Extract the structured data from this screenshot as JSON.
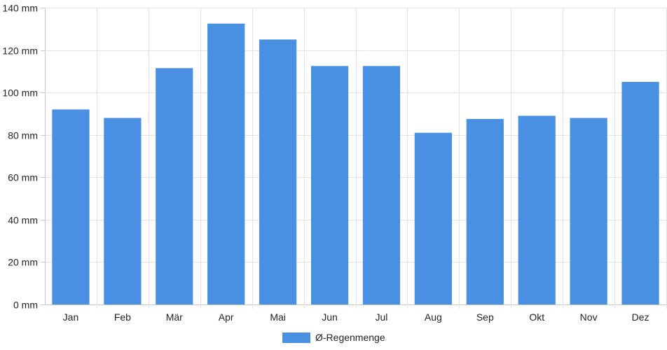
{
  "chart_data": {
    "type": "bar",
    "categories": [
      "Jan",
      "Feb",
      "Mär",
      "Apr",
      "Mai",
      "Jun",
      "Jul",
      "Aug",
      "Sep",
      "Okt",
      "Nov",
      "Dez"
    ],
    "series": [
      {
        "name": "Ø-Regenmenge",
        "values": [
          92,
          88,
          111.5,
          132.5,
          125,
          112.5,
          112.5,
          81,
          87.5,
          89,
          88,
          105
        ],
        "color": "#4a90e2"
      }
    ],
    "ylim": [
      0,
      140
    ],
    "yticks": [
      0,
      20,
      40,
      60,
      80,
      100,
      120,
      140
    ],
    "ytick_labels": [
      "0 mm",
      "20 mm",
      "40 mm",
      "60 mm",
      "80 mm",
      "100 mm",
      "120 mm",
      "140 mm"
    ],
    "grid": true,
    "legend_position": "bottom-center"
  }
}
